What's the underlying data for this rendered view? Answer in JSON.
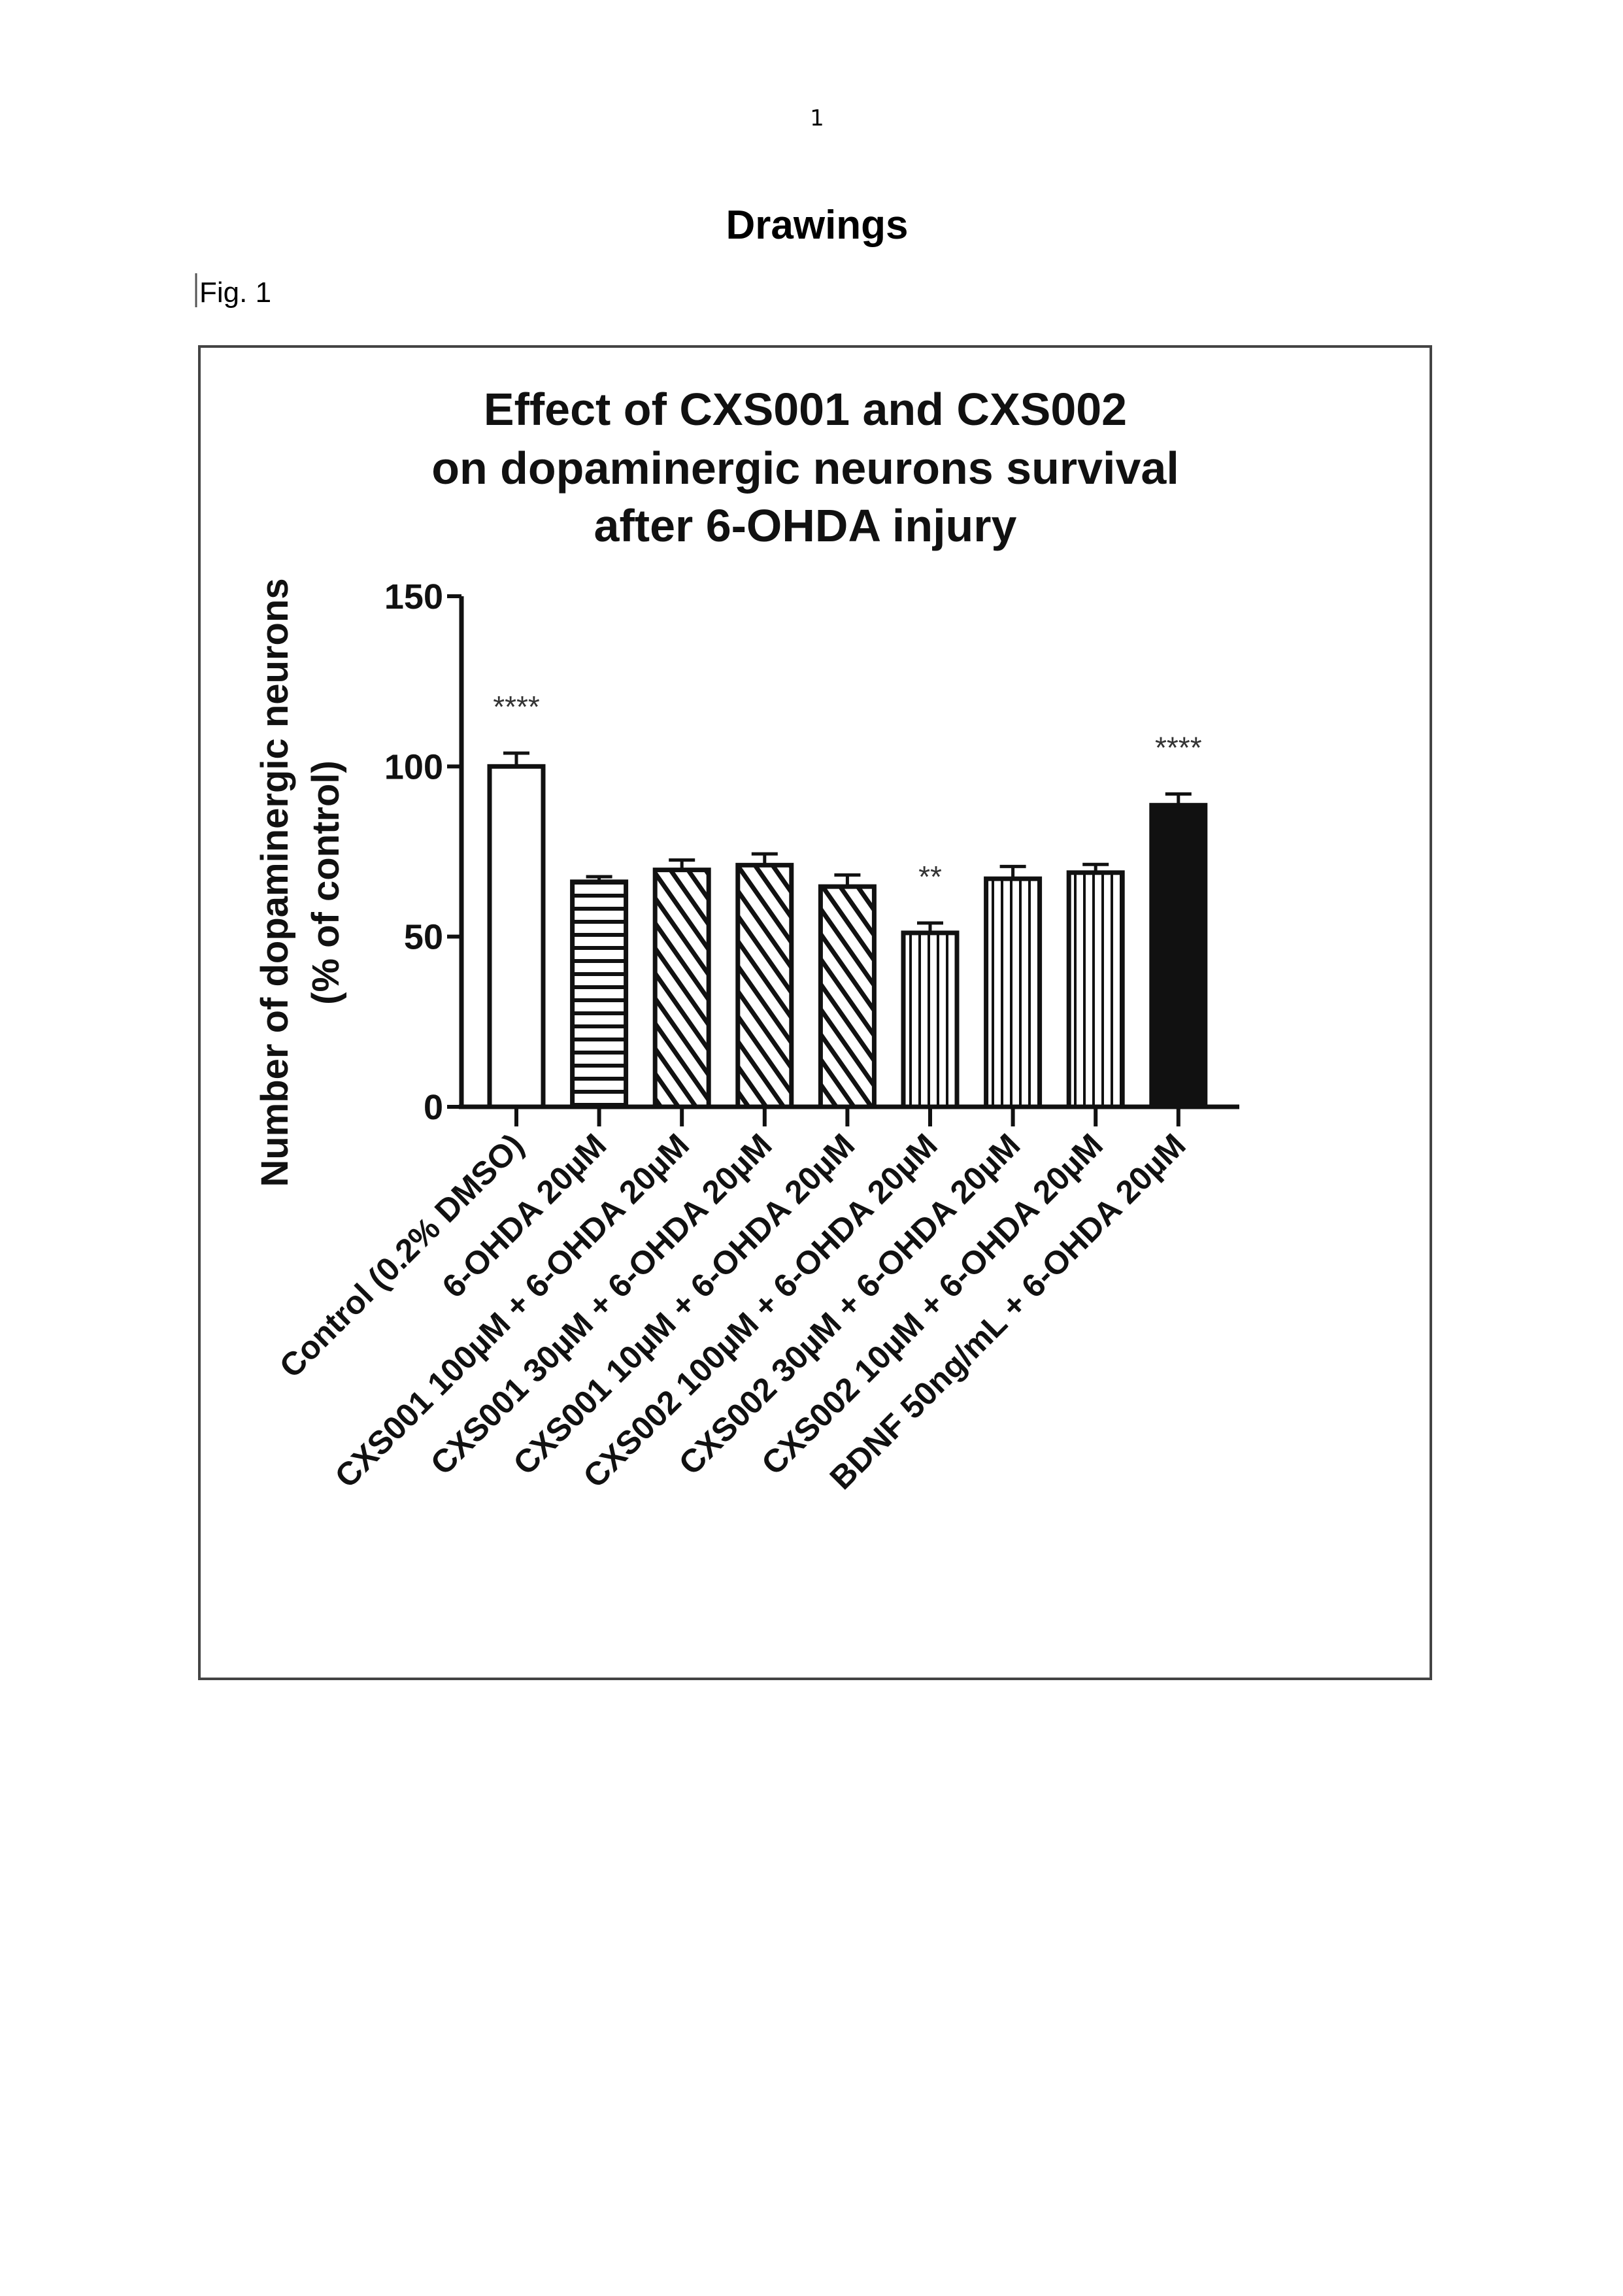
{
  "page": {
    "page_number": "1",
    "heading": "Drawings",
    "figure_label": "Fig. 1"
  },
  "chart_data": {
    "type": "bar",
    "title_lines": [
      "Effect of CXS001 and CXS002",
      "on dopaminergic neurons survival",
      "after 6-OHDA injury"
    ],
    "ylabel_lines": [
      "Number of dopaminergic neurons",
      "(% of control)"
    ],
    "xlabel": "",
    "ylim": [
      0,
      150
    ],
    "yticks": [
      0,
      50,
      100,
      150
    ],
    "grid": false,
    "legend": "none",
    "categories": [
      "Control (0.2% DMSO)",
      "6-OHDA 20µM",
      "CXS001 100µM + 6-OHDA 20µM",
      "CXS001 30µM + 6-OHDA 20µM",
      "CXS001 10µM + 6-OHDA 20µM",
      "CXS002 100µM + 6-OHDA 20µM",
      "CXS002 30µM + 6-OHDA 20µM",
      "CXS002 10µM + 6-OHDA 20µM",
      "BDNF 50ng/mL + 6-OHDA 20µM"
    ],
    "values": [
      100,
      66.1,
      69.6,
      71.0,
      64.7,
      51.1,
      67.0,
      68.8,
      88.6
    ],
    "error_upper": [
      103.9,
      67.6,
      72.5,
      74.3,
      68.1,
      54.0,
      70.6,
      71.2,
      91.9
    ],
    "fills": [
      "white",
      "horizontal",
      "diagonal",
      "diagonal",
      "diagonal",
      "vertical",
      "vertical",
      "vertical",
      "black"
    ],
    "significance": [
      "****",
      "",
      "",
      "",
      "",
      "**",
      "",
      "",
      "****"
    ]
  }
}
